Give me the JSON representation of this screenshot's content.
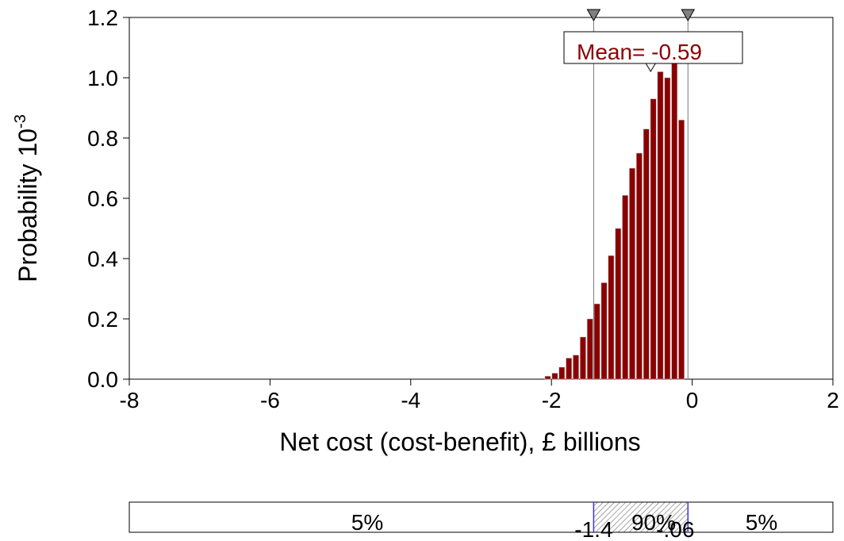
{
  "chart_data": {
    "type": "bar",
    "xlabel": "Net cost (cost-benefit), £ billions",
    "ylabel_text": "Probability 10",
    "ylabel_exp": "-3",
    "xlim": [
      -8,
      2
    ],
    "ylim": [
      0,
      1.2
    ],
    "x_ticks": [
      "-8",
      "-6",
      "-4",
      "-2",
      "0",
      "2"
    ],
    "y_ticks": [
      "0.0",
      "0.2",
      "0.4",
      "0.6",
      "0.8",
      "1.0",
      "1.2"
    ],
    "bar_width": 0.1,
    "bars": [
      {
        "x": -2.05,
        "y": 0.01
      },
      {
        "x": -1.95,
        "y": 0.02
      },
      {
        "x": -1.85,
        "y": 0.04
      },
      {
        "x": -1.75,
        "y": 0.07
      },
      {
        "x": -1.65,
        "y": 0.08
      },
      {
        "x": -1.55,
        "y": 0.14
      },
      {
        "x": -1.45,
        "y": 0.2
      },
      {
        "x": -1.35,
        "y": 0.25
      },
      {
        "x": -1.25,
        "y": 0.32
      },
      {
        "x": -1.15,
        "y": 0.41
      },
      {
        "x": -1.05,
        "y": 0.5
      },
      {
        "x": -0.95,
        "y": 0.61
      },
      {
        "x": -0.85,
        "y": 0.7
      },
      {
        "x": -0.75,
        "y": 0.75
      },
      {
        "x": -0.65,
        "y": 0.83
      },
      {
        "x": -0.55,
        "y": 0.93
      },
      {
        "x": -0.45,
        "y": 1.02
      },
      {
        "x": -0.35,
        "y": 1.0
      },
      {
        "x": -0.25,
        "y": 1.06
      },
      {
        "x": -0.15,
        "y": 0.86
      }
    ],
    "bar_color": "#8b0000",
    "mean_label": "Mean= -0.59",
    "mean_value": -0.59,
    "lower_marker": -1.4,
    "upper_marker": -0.06,
    "lower_marker_label": "-1.4",
    "upper_marker_label": "-.06",
    "band_labels": {
      "left": "5%",
      "middle": "90%",
      "right": "5%"
    }
  }
}
